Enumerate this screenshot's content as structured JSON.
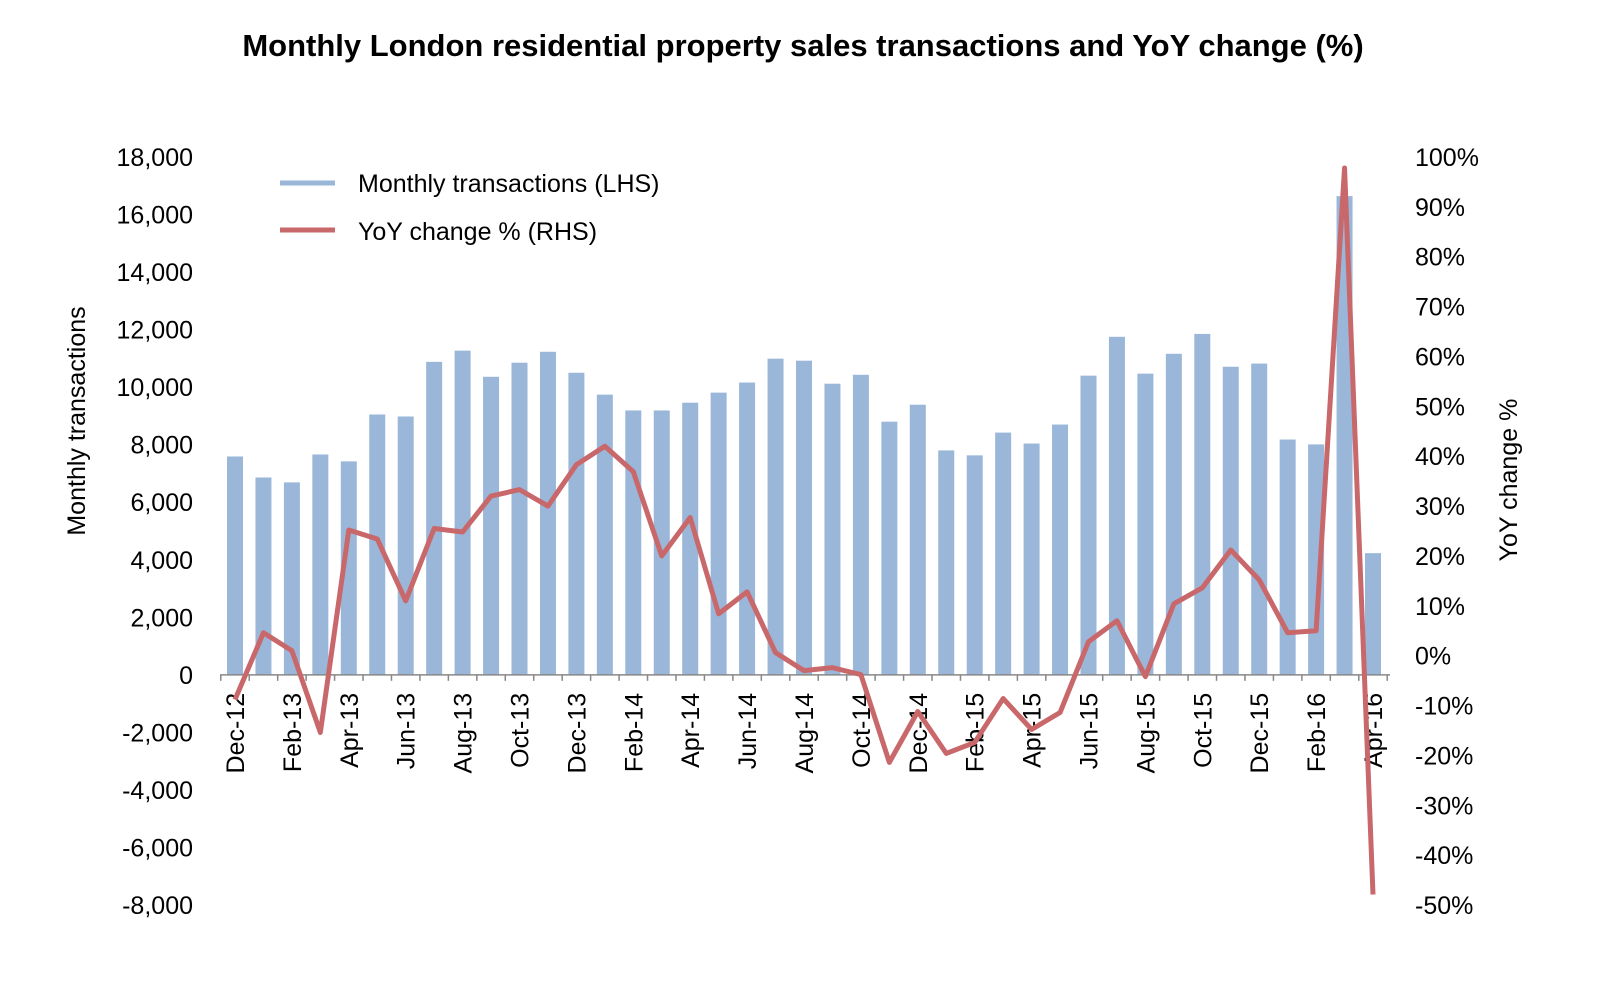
{
  "chart_data": {
    "type": "bar+line",
    "title": "Monthly London residential property sales  transactions and YoY change (%)",
    "ylabel_left": "Monthly transactions",
    "ylabel_right": "YoY change %",
    "ylim_left": [
      -8000,
      18000
    ],
    "ylim_right": [
      -50,
      100
    ],
    "yticks_left": [
      "-8,000",
      "-6,000",
      "-4,000",
      "-2,000",
      "0",
      "2,000",
      "4,000",
      "6,000",
      "8,000",
      "10,000",
      "12,000",
      "14,000",
      "16,000",
      "18,000"
    ],
    "yticks_right": [
      "-50%",
      "-40%",
      "-30%",
      "-20%",
      "-10%",
      "0%",
      "10%",
      "20%",
      "30%",
      "40%",
      "50%",
      "60%",
      "70%",
      "80%",
      "90%",
      "100%"
    ],
    "categories": [
      "Dec-12",
      "Jan-13",
      "Feb-13",
      "Mar-13",
      "Apr-13",
      "May-13",
      "Jun-13",
      "Jul-13",
      "Aug-13",
      "Sep-13",
      "Oct-13",
      "Nov-13",
      "Dec-13",
      "Jan-14",
      "Feb-14",
      "Mar-14",
      "Apr-14",
      "May-14",
      "Jun-14",
      "Jul-14",
      "Aug-14",
      "Sep-14",
      "Oct-14",
      "Nov-14",
      "Dec-14",
      "Jan-15",
      "Feb-15",
      "Mar-15",
      "Apr-15",
      "May-15",
      "Jun-15",
      "Jul-15",
      "Aug-15",
      "Sep-15",
      "Oct-15",
      "Nov-15",
      "Dec-15",
      "Jan-16",
      "Feb-16",
      "Mar-16",
      "Apr-16"
    ],
    "xtick_labels": [
      "Dec-12",
      "Feb-13",
      "Apr-13",
      "Jun-13",
      "Aug-13",
      "Oct-13",
      "Dec-13",
      "Feb-14",
      "Apr-14",
      "Jun-14",
      "Aug-14",
      "Oct-14",
      "Dec-14",
      "Feb-15",
      "Apr-15",
      "Jun-15",
      "Aug-15",
      "Oct-15",
      "Dec-15",
      "Feb-16",
      "Apr-16"
    ],
    "series": [
      {
        "name": "Monthly transactions (LHS)",
        "type": "bar",
        "axis": "left",
        "color": "#9ab7da",
        "values": [
          7590,
          6860,
          6690,
          7660,
          7420,
          9050,
          8980,
          10880,
          11270,
          10360,
          10850,
          11230,
          10500,
          9740,
          9190,
          9190,
          9460,
          9810,
          10160,
          10990,
          10920,
          10120,
          10430,
          8800,
          9390,
          7800,
          7630,
          8420,
          8040,
          8700,
          10400,
          11750,
          10470,
          11160,
          11850,
          10710,
          10820,
          8180,
          8010,
          16640,
          4230
        ]
      },
      {
        "name": "YoY change  % (RHS)",
        "type": "line",
        "axis": "right",
        "color": "#c9686a",
        "values": [
          -8.8,
          4.6,
          1.0,
          -15.4,
          25.2,
          23.4,
          11.0,
          25.5,
          24.8,
          32.0,
          33.3,
          30.0,
          38.3,
          42.0,
          36.9,
          20.0,
          27.7,
          8.4,
          12.8,
          0.6,
          -3.0,
          -2.4,
          -3.8,
          -21.4,
          -11.2,
          -19.6,
          -17.4,
          -8.6,
          -14.8,
          -11.4,
          2.8,
          7.0,
          -4.2,
          10.4,
          13.6,
          21.2,
          15.2,
          4.6,
          5.0,
          97.8,
          -47.9
        ]
      }
    ],
    "legend": "top-left",
    "grid": false
  }
}
